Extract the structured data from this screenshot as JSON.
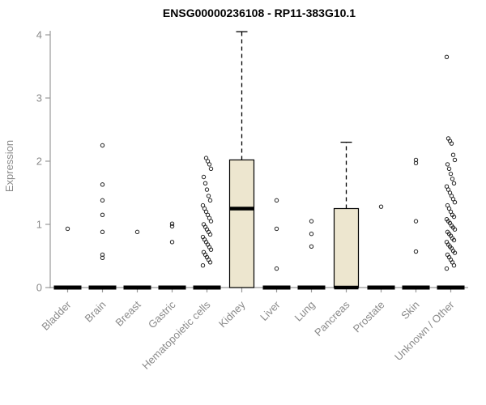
{
  "chart_data": {
    "type": "boxplot",
    "title": "ENSG00000236108 - RP11-383G10.1",
    "xlabel": "",
    "ylabel": "Expression",
    "ylim": [
      0,
      4
    ],
    "yticks": [
      0,
      1,
      2,
      3,
      4
    ],
    "grid": false,
    "legend": "none",
    "colors": {
      "box_fill": "#EDE6CF",
      "box_stroke": "#000000",
      "median": "#000000",
      "whisker": "#000000",
      "axis": "#999999",
      "tick_label": "#8a8a8a",
      "title": "#000000",
      "outlier_stroke": "#222222"
    },
    "categories": [
      "Bladder",
      "Brain",
      "Breast",
      "Gastric",
      "Hematopoietic cells",
      "Kidney",
      "Liver",
      "Lung",
      "Pancreas",
      "Prostate",
      "Skin",
      "Unknown / Other"
    ],
    "boxes": [
      {
        "category": "Bladder",
        "q1": 0,
        "median": 0,
        "q3": 0,
        "whisker_low": 0,
        "whisker_high": 0,
        "outliers": [
          0.93
        ]
      },
      {
        "category": "Brain",
        "q1": 0,
        "median": 0,
        "q3": 0,
        "whisker_low": 0,
        "whisker_high": 0,
        "outliers": [
          0.47,
          0.52,
          0.88,
          1.15,
          1.38,
          1.63,
          2.25
        ]
      },
      {
        "category": "Breast",
        "q1": 0,
        "median": 0,
        "q3": 0,
        "whisker_low": 0,
        "whisker_high": 0,
        "outliers": [
          0.88
        ]
      },
      {
        "category": "Gastric",
        "q1": 0,
        "median": 0,
        "q3": 0,
        "whisker_low": 0,
        "whisker_high": 0,
        "outliers": [
          0.72,
          0.97,
          1.01
        ]
      },
      {
        "category": "Hematopoietic cells",
        "q1": 0,
        "median": 0,
        "q3": 0,
        "whisker_low": 0,
        "whisker_high": 0,
        "outliers": [
          0.35,
          0.4,
          0.44,
          0.48,
          0.52,
          0.56,
          0.6,
          0.64,
          0.68,
          0.72,
          0.76,
          0.8,
          0.84,
          0.88,
          0.92,
          0.96,
          1.0,
          1.05,
          1.1,
          1.15,
          1.2,
          1.25,
          1.3,
          1.38,
          1.45,
          1.55,
          1.65,
          1.75,
          1.88,
          1.95,
          2.0,
          2.05
        ]
      },
      {
        "category": "Kidney",
        "q1": 0,
        "median": 1.25,
        "q3": 2.02,
        "whisker_low": 0,
        "whisker_high": 4.05,
        "outliers": []
      },
      {
        "category": "Liver",
        "q1": 0,
        "median": 0,
        "q3": 0,
        "whisker_low": 0,
        "whisker_high": 0,
        "outliers": [
          0.3,
          0.93,
          1.38
        ]
      },
      {
        "category": "Lung",
        "q1": 0,
        "median": 0,
        "q3": 0,
        "whisker_low": 0,
        "whisker_high": 0,
        "outliers": [
          0.65,
          0.85,
          1.05
        ]
      },
      {
        "category": "Pancreas",
        "q1": 0,
        "median": 0,
        "q3": 1.25,
        "whisker_low": 0,
        "whisker_high": 2.3,
        "outliers": []
      },
      {
        "category": "Prostate",
        "q1": 0,
        "median": 0,
        "q3": 0,
        "whisker_low": 0,
        "whisker_high": 0,
        "outliers": [
          1.28
        ]
      },
      {
        "category": "Skin",
        "q1": 0,
        "median": 0,
        "q3": 0,
        "whisker_low": 0,
        "whisker_high": 0,
        "outliers": [
          0.57,
          1.05,
          1.97,
          2.02
        ]
      },
      {
        "category": "Unknown / Other",
        "q1": 0,
        "median": 0,
        "q3": 0,
        "whisker_low": 0,
        "whisker_high": 0,
        "outliers": [
          0.3,
          0.35,
          0.4,
          0.44,
          0.48,
          0.52,
          0.55,
          0.58,
          0.62,
          0.65,
          0.68,
          0.72,
          0.75,
          0.78,
          0.82,
          0.85,
          0.88,
          0.92,
          0.95,
          0.98,
          1.02,
          1.05,
          1.08,
          1.12,
          1.15,
          1.2,
          1.25,
          1.3,
          1.35,
          1.4,
          1.45,
          1.5,
          1.55,
          1.6,
          1.65,
          1.72,
          1.8,
          1.88,
          1.95,
          2.02,
          2.1,
          2.28,
          2.32,
          2.36,
          3.65
        ]
      }
    ]
  }
}
